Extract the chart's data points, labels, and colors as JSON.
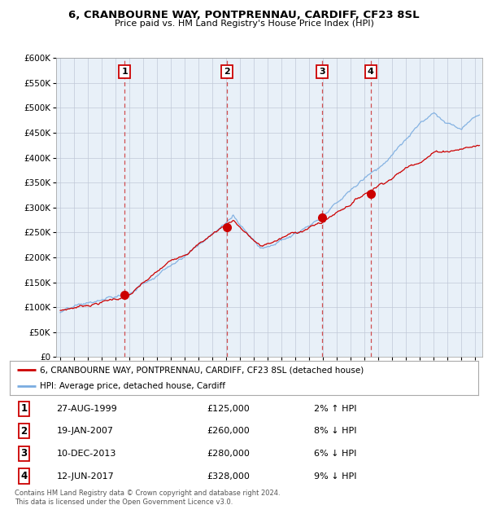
{
  "title": "6, CRANBOURNE WAY, PONTPRENNAU, CARDIFF, CF23 8SL",
  "subtitle": "Price paid vs. HM Land Registry's House Price Index (HPI)",
  "ylim": [
    0,
    600000
  ],
  "yticks": [
    0,
    50000,
    100000,
    150000,
    200000,
    250000,
    300000,
    350000,
    400000,
    450000,
    500000,
    550000,
    600000
  ],
  "xstart": 1994.7,
  "xend": 2025.5,
  "background_color": "#e8f0f8",
  "fig_bg": "#ffffff",
  "red_line_color": "#cc0000",
  "blue_line_color": "#7aace0",
  "transaction_color": "#cc0000",
  "dashed_line_color": "#cc3333",
  "grid_color": "#c0c8d8",
  "transactions": [
    {
      "year": 1999.65,
      "price": 125000,
      "label": "1"
    },
    {
      "year": 2007.05,
      "price": 260000,
      "label": "2"
    },
    {
      "year": 2013.93,
      "price": 280000,
      "label": "3"
    },
    {
      "year": 2017.44,
      "price": 328000,
      "label": "4"
    }
  ],
  "table_rows": [
    {
      "num": "1",
      "date": "27-AUG-1999",
      "price": "£125,000",
      "pct": "2% ↑ HPI"
    },
    {
      "num": "2",
      "date": "19-JAN-2007",
      "price": "£260,000",
      "pct": "8% ↓ HPI"
    },
    {
      "num": "3",
      "date": "10-DEC-2013",
      "price": "£280,000",
      "pct": "6% ↓ HPI"
    },
    {
      "num": "4",
      "date": "12-JUN-2017",
      "price": "£328,000",
      "pct": "9% ↓ HPI"
    }
  ],
  "footer": "Contains HM Land Registry data © Crown copyright and database right 2024.\nThis data is licensed under the Open Government Licence v3.0.",
  "legend_red": "6, CRANBOURNE WAY, PONTPRENNAU, CARDIFF, CF23 8SL (detached house)",
  "legend_blue": "HPI: Average price, detached house, Cardiff"
}
